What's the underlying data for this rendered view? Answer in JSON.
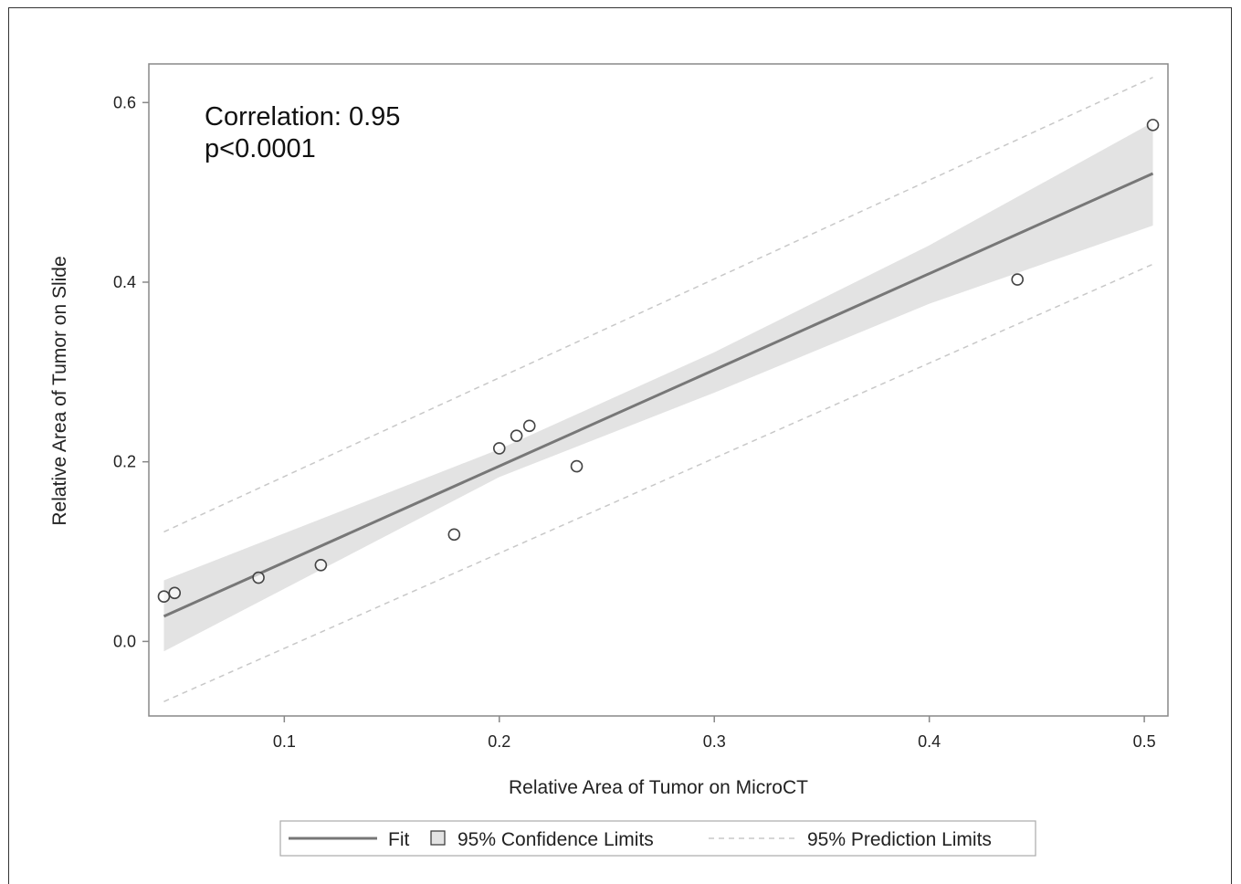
{
  "chart_data": {
    "type": "scatter",
    "xlabel": "Relative Area of Tumor on MicroCT",
    "ylabel": "Relative Area of Tumor on Slide",
    "xlim": [
      0.037,
      0.511
    ],
    "ylim": [
      -0.083,
      0.643
    ],
    "xticks": [
      0.1,
      0.2,
      0.3,
      0.4,
      0.5
    ],
    "xtick_labels": [
      "0.1",
      "0.2",
      "0.3",
      "0.4",
      "0.5"
    ],
    "yticks": [
      0.0,
      0.2,
      0.4,
      0.6
    ],
    "ytick_labels": [
      "0.0",
      "0.2",
      "0.4",
      "0.6"
    ],
    "grid": false,
    "annotations": [
      "Correlation: 0.95",
      "p<0.0001"
    ],
    "points": [
      {
        "x": 0.044,
        "y": 0.05
      },
      {
        "x": 0.049,
        "y": 0.054
      },
      {
        "x": 0.088,
        "y": 0.071
      },
      {
        "x": 0.117,
        "y": 0.085
      },
      {
        "x": 0.179,
        "y": 0.119
      },
      {
        "x": 0.2,
        "y": 0.215
      },
      {
        "x": 0.208,
        "y": 0.229
      },
      {
        "x": 0.214,
        "y": 0.24
      },
      {
        "x": 0.236,
        "y": 0.195
      },
      {
        "x": 0.441,
        "y": 0.403
      },
      {
        "x": 0.504,
        "y": 0.575
      }
    ],
    "fit": {
      "x_range": [
        0.044,
        0.504
      ],
      "y_range": [
        0.028,
        0.521
      ]
    },
    "confidence_band": {
      "x": [
        0.044,
        0.2,
        0.3,
        0.4,
        0.504
      ],
      "lower": [
        -0.011,
        0.183,
        0.277,
        0.376,
        0.463
      ],
      "upper": [
        0.068,
        0.214,
        0.322,
        0.441,
        0.578
      ]
    },
    "prediction_limits": {
      "x_range": [
        0.044,
        0.504
      ],
      "lower": [
        -0.067,
        0.42
      ],
      "upper": [
        0.122,
        0.628
      ]
    },
    "legend": {
      "placement": "bottom",
      "entries": [
        "Fit",
        "95% Confidence Limits",
        "95% Prediction Limits"
      ]
    },
    "colors": {
      "fit": "#777777",
      "band": "#e3e3e3",
      "prediction": "#c8c8c8",
      "marker": "#444444",
      "axis": "#888888"
    }
  }
}
